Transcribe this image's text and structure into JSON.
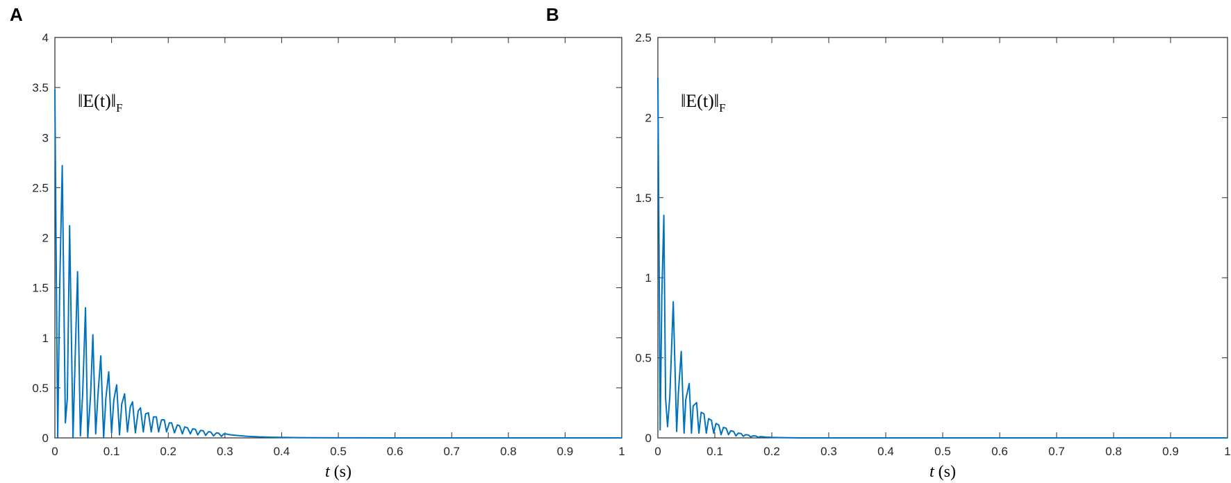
{
  "panels": [
    {
      "letter": "A"
    },
    {
      "letter": "B"
    }
  ],
  "chart_data": [
    {
      "type": "line",
      "annotation": {
        "main": "‖E(t)‖",
        "sub": "F"
      },
      "xlabel": {
        "var": "t",
        "unit": "(s)"
      },
      "ylabel": "",
      "xlim": [
        0,
        1
      ],
      "ylim": [
        0,
        4
      ],
      "xticks": [
        "0",
        "0.1",
        "0.2",
        "0.3",
        "0.4",
        "0.5",
        "0.6",
        "0.7",
        "0.8",
        "0.9",
        "1"
      ],
      "yticks": [
        "0",
        "0.5",
        "1",
        "1.5",
        "2",
        "2.5",
        "3",
        "3.5",
        "4"
      ],
      "grid": false,
      "line_color": "#0072BD",
      "series": [
        {
          "x": [
            0,
            0.002,
            0.005,
            0.0085,
            0.013,
            0.0185,
            0.022,
            0.026,
            0.032,
            0.034,
            0.04,
            0.045,
            0.049,
            0.054,
            0.058,
            0.063,
            0.067,
            0.072,
            0.076,
            0.081,
            0.086,
            0.09,
            0.095,
            0.1,
            0.104,
            0.109,
            0.114,
            0.118,
            0.123,
            0.128,
            0.133,
            0.137,
            0.142,
            0.147,
            0.151,
            0.156,
            0.16,
            0.165,
            0.17,
            0.174,
            0.179,
            0.183,
            0.188,
            0.193,
            0.197,
            0.202,
            0.206,
            0.211,
            0.216,
            0.22,
            0.225,
            0.229,
            0.234,
            0.239,
            0.243,
            0.248,
            0.252,
            0.257,
            0.262,
            0.266,
            0.271,
            0.275,
            0.28,
            0.285,
            0.289,
            0.294,
            0.298,
            0.303,
            0.31,
            0.32,
            0.33,
            0.34,
            0.35,
            0.36,
            0.38,
            0.4,
            0.43,
            0.46,
            0.5,
            0.6,
            0.7,
            0.8,
            0.9,
            1.0
          ],
          "y": [
            3.48,
            2.0,
            0.0,
            1.5,
            2.72,
            0.15,
            0.4,
            2.12,
            0.0,
            0.43,
            1.66,
            0.02,
            0.44,
            1.3,
            0.0,
            0.43,
            1.03,
            0.04,
            0.43,
            0.82,
            0.0,
            0.4,
            0.66,
            0.05,
            0.38,
            0.53,
            0.03,
            0.34,
            0.44,
            0.06,
            0.31,
            0.36,
            0.05,
            0.27,
            0.3,
            0.06,
            0.24,
            0.25,
            0.06,
            0.21,
            0.21,
            0.06,
            0.18,
            0.18,
            0.06,
            0.15,
            0.15,
            0.05,
            0.13,
            0.12,
            0.04,
            0.11,
            0.1,
            0.04,
            0.09,
            0.085,
            0.03,
            0.075,
            0.07,
            0.025,
            0.062,
            0.058,
            0.02,
            0.05,
            0.047,
            0.015,
            0.04,
            0.038,
            0.03,
            0.025,
            0.02,
            0.016,
            0.013,
            0.01,
            0.007,
            0.005,
            0.003,
            0.002,
            0.001,
            0.0,
            0.0,
            0.0,
            0.0,
            0.0
          ]
        }
      ]
    },
    {
      "type": "line",
      "annotation": {
        "main": "‖E(t)‖",
        "sub": "F"
      },
      "xlabel": {
        "var": "t",
        "unit": "(s)"
      },
      "ylabel": "",
      "xlim": [
        0,
        1
      ],
      "ylim": [
        0,
        2.5
      ],
      "xticks": [
        "0",
        "0.1",
        "0.2",
        "0.3",
        "0.4",
        "0.5",
        "0.6",
        "0.7",
        "0.8",
        "0.9",
        "1"
      ],
      "yticks": [
        "0",
        "0.5",
        "1",
        "1.5",
        "2",
        "2.5"
      ],
      "grid": false,
      "line_color": "#0072BD",
      "series": [
        {
          "x": [
            0,
            0.002,
            0.004,
            0.007,
            0.0105,
            0.0135,
            0.017,
            0.021,
            0.027,
            0.033,
            0.036,
            0.041,
            0.046,
            0.049,
            0.055,
            0.059,
            0.062,
            0.068,
            0.072,
            0.076,
            0.081,
            0.085,
            0.089,
            0.094,
            0.098,
            0.102,
            0.107,
            0.111,
            0.115,
            0.12,
            0.124,
            0.128,
            0.133,
            0.137,
            0.141,
            0.146,
            0.15,
            0.154,
            0.159,
            0.163,
            0.167,
            0.172,
            0.176,
            0.18,
            0.19,
            0.2,
            0.21,
            0.23,
            0.25,
            0.3,
            0.4,
            0.5,
            0.6,
            0.7,
            0.8,
            0.9,
            1.0
          ],
          "y": [
            2.25,
            1.2,
            0.05,
            0.9,
            1.39,
            0.25,
            0.07,
            0.26,
            0.85,
            0.04,
            0.28,
            0.54,
            0.03,
            0.24,
            0.34,
            0.03,
            0.2,
            0.22,
            0.03,
            0.16,
            0.15,
            0.03,
            0.12,
            0.11,
            0.03,
            0.09,
            0.08,
            0.02,
            0.065,
            0.06,
            0.02,
            0.045,
            0.04,
            0.012,
            0.03,
            0.027,
            0.01,
            0.02,
            0.018,
            0.006,
            0.013,
            0.012,
            0.004,
            0.008,
            0.005,
            0.003,
            0.002,
            0.001,
            0.0,
            0.0,
            0.0,
            0.0,
            0.0,
            0.0,
            0.0,
            0.0,
            0.0
          ]
        }
      ]
    }
  ]
}
